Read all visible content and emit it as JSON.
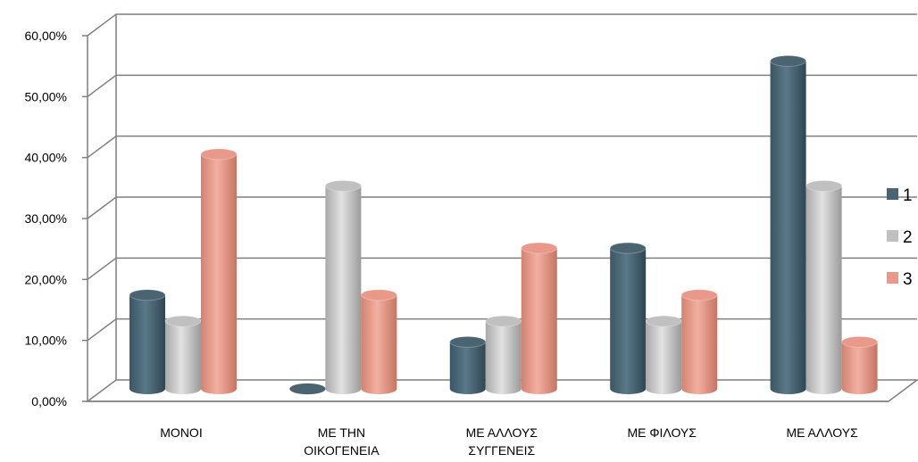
{
  "chart_data": {
    "type": "bar",
    "categories": [
      [
        "ΜΟΝΟΙ"
      ],
      [
        "ΜΕ ΤΗΝ",
        "ΟΙΚΟΓΕΝΕΙΑ"
      ],
      [
        "ΜΕ ΑΛΛΟΥΣ",
        "ΣΥΓΓΕΝΕΙΣ"
      ],
      [
        "ΜΕ ΦΙΛΟΥΣ"
      ],
      [
        "ΜΕ ΑΛΛΟΥΣ"
      ]
    ],
    "series": [
      {
        "name": "1",
        "color": "#4a6472",
        "values": [
          15.4,
          0.0,
          7.7,
          23.1,
          53.8
        ]
      },
      {
        "name": "2",
        "color": "#c0c0c0",
        "values": [
          11.1,
          33.3,
          11.1,
          11.1,
          33.3
        ]
      },
      {
        "name": "3",
        "color": "#e8998a",
        "values": [
          38.5,
          15.4,
          23.1,
          15.4,
          7.7
        ]
      }
    ],
    "yticks": [
      "0,00%",
      "10,00%",
      "20,00%",
      "30,00%",
      "40,00%",
      "50,00%",
      "60,00%"
    ],
    "ylim": [
      0,
      60
    ],
    "grid": true,
    "legend_position": "right",
    "title": "",
    "xlabel": "",
    "ylabel": ""
  }
}
